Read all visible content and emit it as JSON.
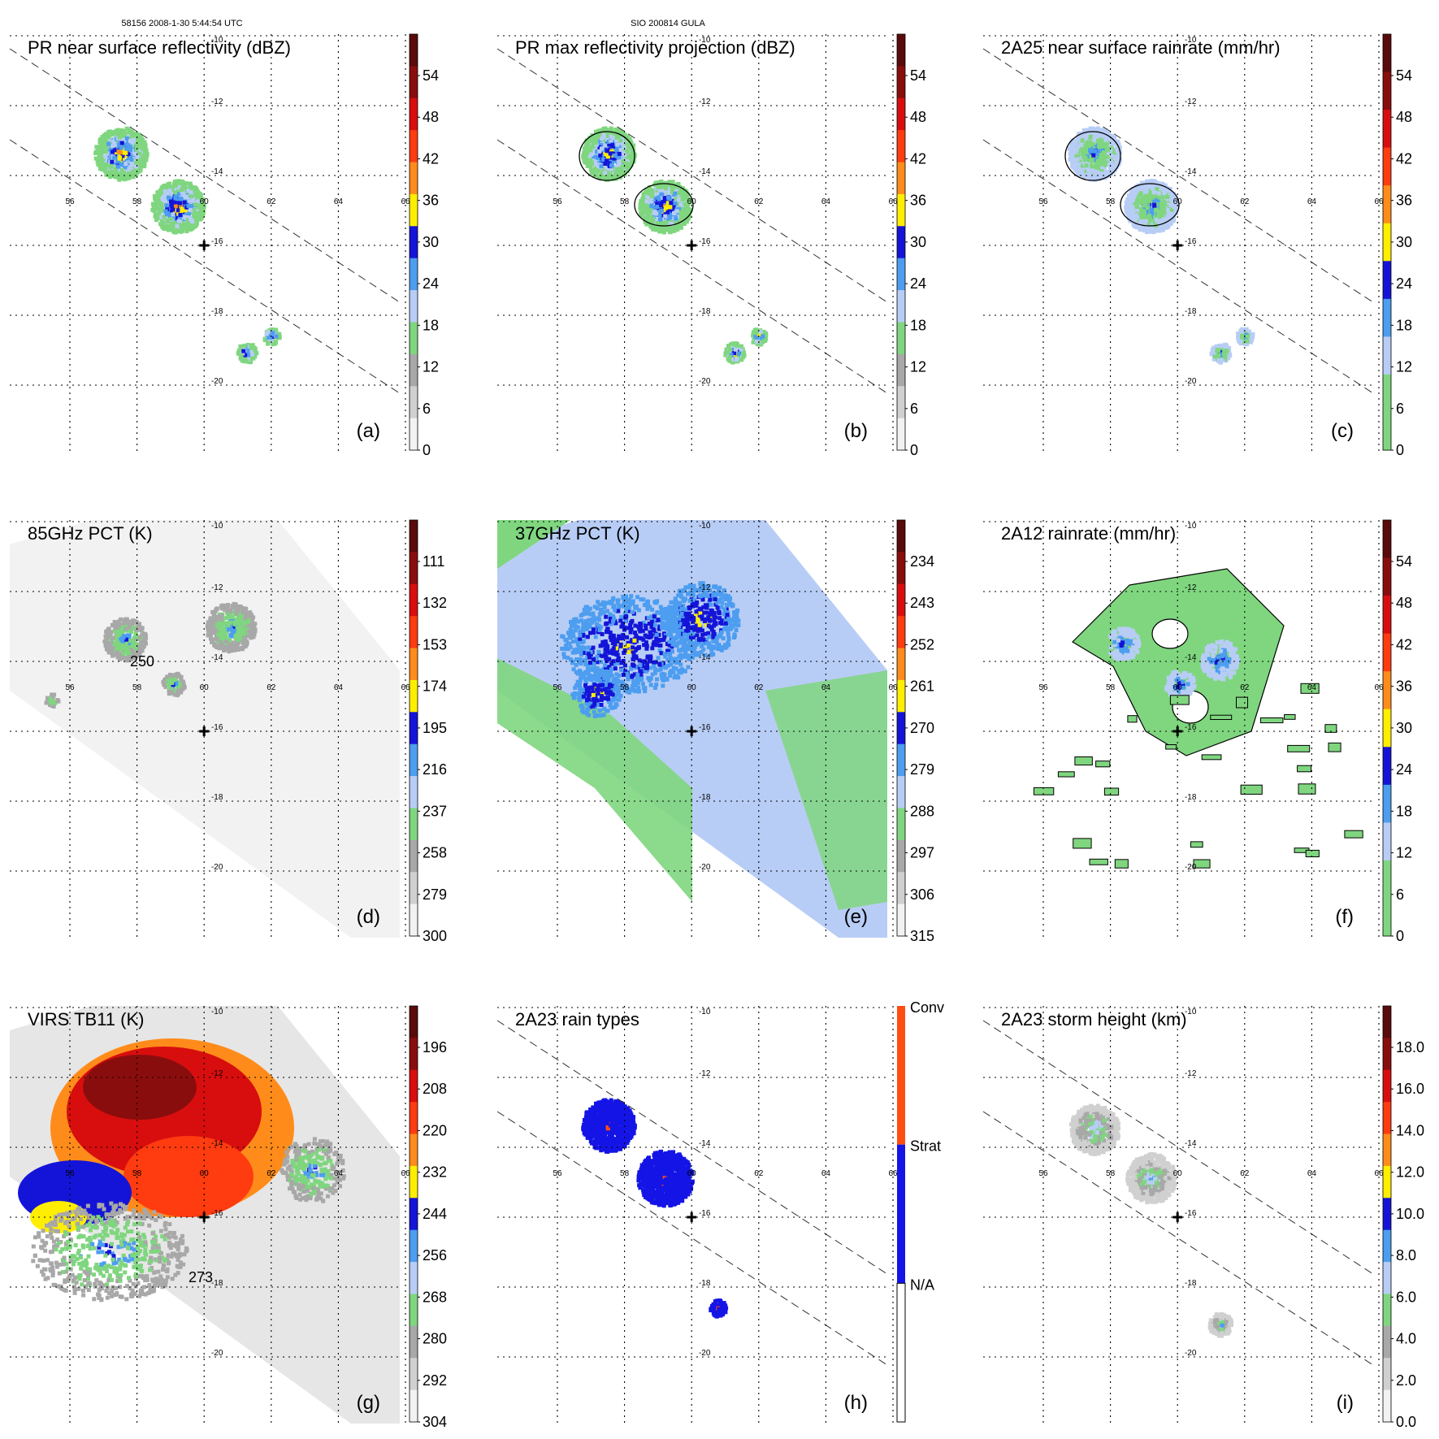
{
  "header": {
    "left": "58156 2008-1-30 5:44:54 UTC",
    "center": "SIO 200814 GULA"
  },
  "lon_labels": [
    "56",
    "58",
    "60",
    "62",
    "64",
    "66"
  ],
  "lat_labels": [
    "-10",
    "-12",
    "-14",
    "-16",
    "-18",
    "-20"
  ],
  "colors": {
    "near_white": "#f2f2f2",
    "light_gray": "#d0d0d0",
    "gray": "#a8a8a8",
    "green": "#7fd67f",
    "light_blue": "#b8cdf5",
    "sky_blue": "#4d9df0",
    "blue": "#1414d8",
    "yellow": "#ffee00",
    "orange": "#ff8c1a",
    "red_orange": "#ff3b10",
    "red": "#d80e0e",
    "dark_red": "#8a0d0d",
    "brown": "#5a0a0a",
    "conv": "#ff4d10",
    "strat": "#1414e6",
    "na": "#ffffff"
  },
  "panels": [
    {
      "id": "a",
      "title": "PR near surface reflectivity (dBZ)",
      "label": "(a)",
      "coverage": "pr",
      "ramp": "std",
      "ticks": [
        "54",
        "48",
        "42",
        "36",
        "30",
        "24",
        "18",
        "12",
        "6",
        "0"
      ],
      "scale": "continuous"
    },
    {
      "id": "b",
      "title": "PR max reflectivity projection (dBZ)",
      "label": "(b)",
      "coverage": "pr",
      "ramp": "std",
      "ticks": [
        "54",
        "48",
        "42",
        "36",
        "30",
        "24",
        "18",
        "12",
        "6",
        "0"
      ],
      "scale": "continuous"
    },
    {
      "id": "c",
      "title": "2A25 near surface rainrate (mm/hr)",
      "label": "(c)",
      "coverage": "pr",
      "ramp": "rain",
      "ticks": [
        "54",
        "48",
        "42",
        "36",
        "30",
        "24",
        "18",
        "12",
        "6",
        "0"
      ],
      "scale": "continuous"
    },
    {
      "id": "d",
      "title": "85GHz PCT (K)",
      "label": "(d)",
      "coverage": "tmi",
      "ramp": "std",
      "annotation": "250",
      "ticks": [
        "111",
        "132",
        "153",
        "174",
        "195",
        "216",
        "237",
        "258",
        "279",
        "300"
      ],
      "scale": "continuous"
    },
    {
      "id": "e",
      "title": "37GHz PCT (K)",
      "label": "(e)",
      "coverage": "tmi",
      "ramp": "std",
      "ticks": [
        "234",
        "243",
        "252",
        "261",
        "270",
        "279",
        "288",
        "297",
        "306",
        "315"
      ],
      "scale": "continuous"
    },
    {
      "id": "f",
      "title": "2A12 rainrate (mm/hr)",
      "label": "(f)",
      "coverage": "tmi",
      "ramp": "rain",
      "ticks": [
        "54",
        "48",
        "42",
        "36",
        "30",
        "24",
        "18",
        "12",
        "6",
        "0"
      ],
      "scale": "continuous"
    },
    {
      "id": "g",
      "title": "VIRS TB11 (K)",
      "label": "(g)",
      "coverage": "tmi",
      "ramp": "std",
      "annotation": "273",
      "ticks": [
        "196",
        "208",
        "220",
        "232",
        "244",
        "256",
        "268",
        "280",
        "292",
        "304"
      ],
      "scale": "continuous"
    },
    {
      "id": "h",
      "title": "2A23 rain types",
      "label": "(h)",
      "coverage": "pr",
      "ramp": "types",
      "ticks": [
        "Conv",
        "Strat",
        "N/A"
      ],
      "scale": "categorical"
    },
    {
      "id": "i",
      "title": "2A23 storm height (km)",
      "label": "(i)",
      "coverage": "pr",
      "ramp": "height",
      "ticks": [
        "18.0",
        "16.0",
        "14.0",
        "12.0",
        "10.0",
        "8.0",
        "6.0",
        "4.0",
        "2.0",
        "0.0"
      ],
      "scale": "continuous"
    }
  ]
}
